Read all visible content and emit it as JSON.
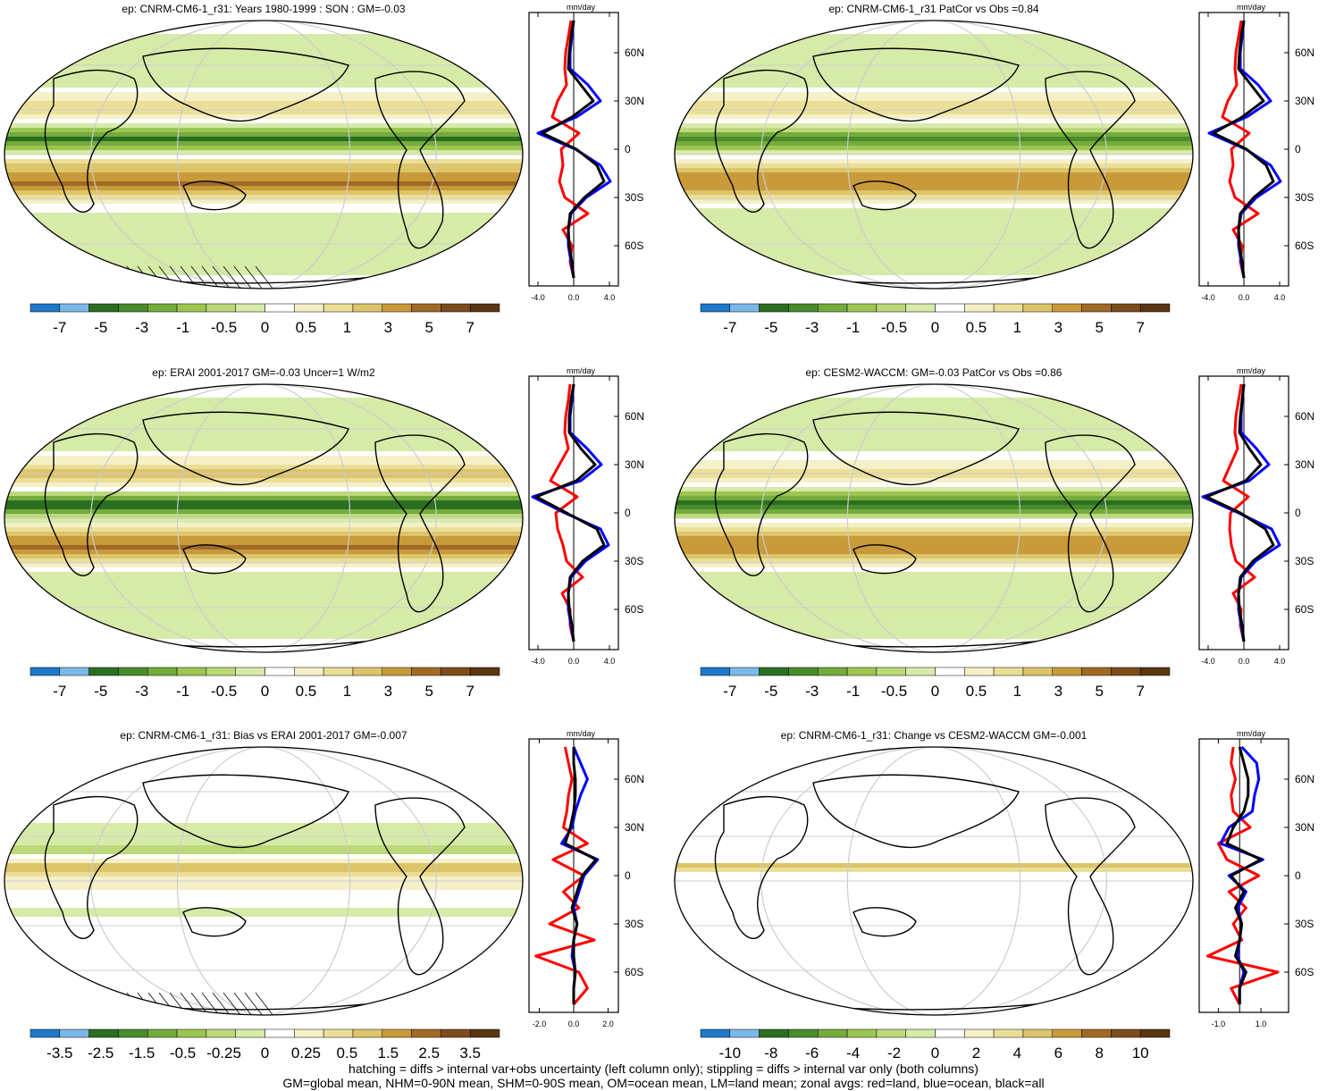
{
  "footer": {
    "line1": "hatching = diffs > internal var+obs uncertainty (left column only); stippling = diffs > internal var only (both columns)",
    "line2": "GM=global mean, NHM=0-90N mean, SHM=0-90S mean, OM=ocean mean, LM=land mean; zonal avgs: red=land, blue=ocean, black=all"
  },
  "colors": {
    "palette": [
      "#1f78c8",
      "#7ab8e8",
      "#2a6e22",
      "#4a8c2c",
      "#74ab3c",
      "#9cc551",
      "#bcd97a",
      "#d7eba8",
      "#ffffff",
      "#f5f0c7",
      "#ebdf98",
      "#dcc46a",
      "#c89a3a",
      "#a06a26",
      "#7d4c1c",
      "#5a3612"
    ],
    "land_line": "#ff0000",
    "ocean_line": "#0000ff",
    "all_line": "#000000"
  },
  "chart_data": [
    {
      "type": "heatmap",
      "title": "ep: CNRM-CM6-1_r31: Years 1980-1999 : SON : GM=-0.03",
      "hatching": true,
      "colorbar": {
        "labels": [
          "-7",
          "-5",
          "-3",
          "-1",
          "-0.5",
          "0",
          "0.5",
          "1",
          "3",
          "5",
          "7"
        ]
      },
      "zonal": {
        "unit": "mm/day",
        "xticks": [
          "-4.0",
          "0.0",
          "4.0"
        ],
        "xlim": [
          -5,
          5
        ],
        "ylabels": [
          "60N",
          "30N",
          "0",
          "30S",
          "60S"
        ],
        "lat": [
          80,
          70,
          60,
          50,
          40,
          30,
          20,
          10,
          0,
          -10,
          -20,
          -30,
          -40,
          -50,
          -60,
          -70,
          -80
        ],
        "all": [
          0,
          -0.3,
          -0.5,
          -0.6,
          0.8,
          2.2,
          -0.2,
          -3.5,
          0.3,
          2.6,
          3.4,
          1.2,
          -0.4,
          -0.6,
          -0.5,
          -0.2,
          0
        ],
        "ocean": [
          0,
          -0.2,
          -0.4,
          -0.4,
          1.6,
          3.0,
          0.3,
          -4.0,
          0.2,
          3.0,
          4.1,
          1.4,
          -0.3,
          -0.6,
          -0.6,
          -0.3,
          0
        ],
        "land": [
          -0.3,
          -0.6,
          -0.9,
          -1.0,
          -0.8,
          -1.8,
          -2.4,
          0.6,
          -1.4,
          -1.2,
          -1.6,
          -1.0,
          1.6,
          -1.2,
          -0.2,
          -0.4,
          0
        ]
      }
    },
    {
      "type": "heatmap",
      "title": "ep: CNRM-CM6-1_r31 PatCor vs Obs =0.84",
      "hatching": false,
      "colorbar": {
        "labels": [
          "-7",
          "-5",
          "-3",
          "-1",
          "-0.5",
          "0",
          "0.5",
          "1",
          "3",
          "5",
          "7"
        ]
      },
      "zonal": {
        "unit": "mm/day",
        "xticks": [
          "-4.0",
          "0.0",
          "4.0"
        ],
        "xlim": [
          -5,
          5
        ],
        "ylabels": [
          "60N",
          "30N",
          "0",
          "30S",
          "60S"
        ],
        "lat": [
          80,
          70,
          60,
          50,
          40,
          30,
          20,
          10,
          0,
          -10,
          -20,
          -30,
          -40,
          -50,
          -60,
          -70,
          -80
        ],
        "all": [
          0,
          -0.3,
          -0.5,
          -0.6,
          0.8,
          2.2,
          -0.2,
          -3.4,
          0.3,
          2.5,
          3.3,
          1.1,
          -0.4,
          -0.6,
          -0.5,
          -0.2,
          0
        ],
        "ocean": [
          0,
          -0.2,
          -0.4,
          -0.4,
          1.6,
          3.0,
          0.3,
          -3.9,
          0.2,
          3.0,
          4.1,
          1.4,
          -0.3,
          -0.6,
          -0.6,
          -0.3,
          0
        ],
        "land": [
          -0.3,
          -0.6,
          -0.9,
          -1.0,
          -0.8,
          -1.8,
          -2.4,
          0.6,
          -1.4,
          -1.2,
          -1.6,
          -1.0,
          1.6,
          -1.2,
          -0.2,
          -0.4,
          0
        ]
      }
    },
    {
      "type": "heatmap",
      "title": "ep: ERAI 2001-2017 GM=-0.03 Uncer=1 W/m2",
      "hatching": false,
      "colorbar": {
        "labels": [
          "-7",
          "-5",
          "-3",
          "-1",
          "-0.5",
          "0",
          "0.5",
          "1",
          "3",
          "5",
          "7"
        ]
      },
      "zonal": {
        "unit": "mm/day",
        "xticks": [
          "-4.0",
          "0.0",
          "4.0"
        ],
        "xlim": [
          -5,
          5
        ],
        "ylabels": [
          "60N",
          "30N",
          "0",
          "30S",
          "60S"
        ],
        "lat": [
          80,
          70,
          60,
          50,
          40,
          30,
          20,
          10,
          0,
          -10,
          -20,
          -30,
          -40,
          -50,
          -60,
          -70,
          -80
        ],
        "all": [
          0,
          -0.3,
          -0.5,
          -0.5,
          0.8,
          2.4,
          0.3,
          -4.2,
          -0.8,
          2.6,
          3.4,
          1.0,
          -0.4,
          -0.6,
          -0.5,
          -0.2,
          0
        ],
        "ocean": [
          0,
          -0.2,
          -0.4,
          -0.4,
          1.5,
          3.1,
          0.8,
          -4.6,
          -1.0,
          3.0,
          3.9,
          1.3,
          -0.3,
          -0.6,
          -0.6,
          -0.3,
          0
        ],
        "land": [
          -0.4,
          -0.6,
          -0.9,
          -1.0,
          -0.6,
          -1.6,
          -2.6,
          0.4,
          -2.0,
          -1.8,
          -1.2,
          -0.8,
          1.0,
          -1.3,
          -0.4,
          -0.4,
          0
        ]
      }
    },
    {
      "type": "heatmap",
      "title": "ep: CESM2-WACCM: GM=-0.03 PatCor vs Obs =0.86",
      "hatching": false,
      "colorbar": {
        "labels": [
          "-7",
          "-5",
          "-3",
          "-1",
          "-0.5",
          "0",
          "0.5",
          "1",
          "3",
          "5",
          "7"
        ]
      },
      "zonal": {
        "unit": "mm/day",
        "xticks": [
          "-4.0",
          "0.0",
          "4.0"
        ],
        "xlim": [
          -5,
          5
        ],
        "ylabels": [
          "60N",
          "30N",
          "0",
          "30S",
          "60S"
        ],
        "lat": [
          80,
          70,
          60,
          50,
          40,
          30,
          20,
          10,
          0,
          -10,
          -20,
          -30,
          -40,
          -50,
          -60,
          -70,
          -80
        ],
        "all": [
          0,
          -0.2,
          -0.4,
          -0.5,
          0.6,
          1.9,
          0.2,
          -4.2,
          -0.4,
          2.4,
          3.3,
          1.0,
          -0.4,
          -0.6,
          -0.5,
          -0.2,
          0
        ],
        "ocean": [
          0,
          -0.2,
          -0.3,
          -0.3,
          1.4,
          2.8,
          0.6,
          -4.6,
          -0.6,
          3.1,
          4.0,
          1.3,
          -0.3,
          -0.6,
          -0.6,
          -0.3,
          0
        ],
        "land": [
          -0.3,
          -0.6,
          -0.9,
          -1.0,
          -0.7,
          -1.5,
          -2.3,
          0.5,
          -1.5,
          -1.6,
          -1.4,
          -0.9,
          1.2,
          -1.2,
          -0.3,
          -0.4,
          0
        ]
      }
    },
    {
      "type": "heatmap",
      "title": "ep: CNRM-CM6-1_r31: Bias vs ERAI 2001-2017  GM=-0.007",
      "hatching": true,
      "colorbar": {
        "labels": [
          "-3.5",
          "-2.5",
          "-1.5",
          "-0.5",
          "-0.25",
          "0",
          "0.25",
          "0.5",
          "1.5",
          "2.5",
          "3.5"
        ]
      },
      "zonal": {
        "unit": "mm/day",
        "xticks": [
          "-2.0",
          "0.0",
          "2.0"
        ],
        "xlim": [
          -2.6,
          2.6
        ],
        "ylabels": [
          "60N",
          "30N",
          "0",
          "30S",
          "60S"
        ],
        "lat": [
          80,
          70,
          60,
          50,
          40,
          30,
          20,
          10,
          0,
          -10,
          -20,
          -30,
          -40,
          -50,
          -60,
          -70,
          -80
        ],
        "all": [
          0,
          0,
          0.1,
          0.1,
          0,
          -0.2,
          -0.5,
          1.3,
          0.5,
          0.2,
          -0.1,
          0.2,
          0,
          0,
          0.1,
          0,
          0
        ],
        "ocean": [
          0,
          0.4,
          0.8,
          0.4,
          0.1,
          -0.1,
          -0.7,
          1.4,
          0.6,
          0.3,
          0,
          0.2,
          0,
          -0.1,
          0.1,
          0,
          0
        ],
        "land": [
          -0.5,
          -0.3,
          -0.1,
          -0.3,
          -0.4,
          -0.6,
          0.8,
          -1.2,
          0.6,
          -0.6,
          0.3,
          -1.4,
          1.2,
          -2.2,
          0.3,
          0.8,
          0
        ]
      }
    },
    {
      "type": "heatmap",
      "title": "ep: CNRM-CM6-1_r31: Change vs CESM2-WACCM GM=-0.001",
      "hatching": false,
      "colorbar": {
        "labels": [
          "-10",
          "-8",
          "-6",
          "-4",
          "-2",
          "0",
          "2",
          "4",
          "6",
          "8",
          "10"
        ]
      },
      "zonal": {
        "unit": "mm/day",
        "xticks": [
          "-1.0",
          "1.0"
        ],
        "xlim": [
          -1.9,
          2.3
        ],
        "ylabels": [
          "60N",
          "30N",
          "0",
          "30S",
          "60S"
        ],
        "lat": [
          80,
          70,
          60,
          50,
          40,
          30,
          20,
          10,
          0,
          -10,
          -20,
          -30,
          -40,
          -50,
          -60,
          -70,
          -80
        ],
        "all": [
          0,
          0.2,
          0.4,
          0.4,
          0.2,
          -0.3,
          -0.6,
          1.0,
          -0.4,
          0.2,
          -0.2,
          0.1,
          0,
          -0.2,
          0.3,
          0,
          0
        ],
        "ocean": [
          0.1,
          0.8,
          0.9,
          0.7,
          0.6,
          -0.5,
          -0.9,
          1.1,
          -0.5,
          0.3,
          -0.1,
          0.1,
          0,
          -0.1,
          0.2,
          0,
          0
        ],
        "land": [
          -0.3,
          -0.4,
          -0.2,
          -0.4,
          -0.3,
          0.5,
          -1.0,
          -0.6,
          0.9,
          -0.5,
          0.3,
          -0.3,
          0.1,
          -1.5,
          1.8,
          -0.4,
          0
        ]
      }
    }
  ]
}
